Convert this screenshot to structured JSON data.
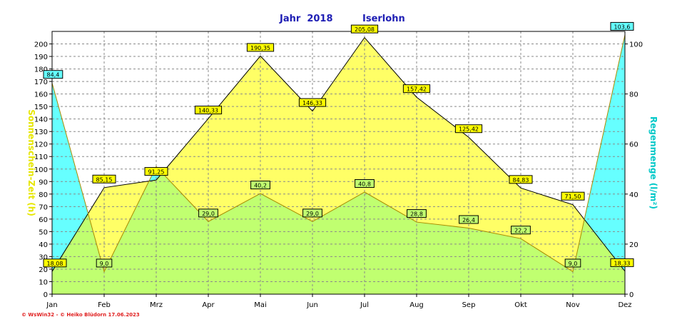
{
  "chart_data": {
    "type": "area",
    "title": "Jahr  2018",
    "subtitle": "Iserlohn",
    "categories": [
      "Jan",
      "Feb",
      "Mrz",
      "Apr",
      "Mai",
      "Jun",
      "Jul",
      "Aug",
      "Sep",
      "Okt",
      "Nov",
      "Dez"
    ],
    "left_axis": {
      "label": "Sonnenschein-Zeit  (h)",
      "ylim": [
        0,
        210
      ],
      "ticks": [
        0,
        10,
        20,
        30,
        40,
        50,
        60,
        70,
        80,
        90,
        100,
        110,
        120,
        130,
        140,
        150,
        160,
        170,
        180,
        190,
        200
      ]
    },
    "right_axis": {
      "label": "Regenmenge  (l/m²)",
      "ylim": [
        0,
        105
      ],
      "ticks": [
        0,
        20,
        40,
        60,
        80,
        100
      ]
    },
    "grid": true,
    "series": [
      {
        "name": "Sonnenschein-Zeit",
        "axis": "left",
        "color": "#ffff66",
        "label_bg": "#ffff00",
        "values": [
          18.08,
          85.15,
          91.25,
          140.33,
          190.35,
          146.33,
          205.08,
          157.42,
          125.42,
          84.83,
          71.5,
          18.33
        ],
        "labels": [
          "18,08",
          "85,15",
          "91,25",
          "140,33",
          "190,35",
          "146,33",
          "205,08",
          "157,42",
          "125,42",
          "84,83",
          "71,50",
          "18,33"
        ]
      },
      {
        "name": "Regenmenge",
        "axis": "right",
        "color": "#66ffff",
        "label_bg": "#66ffff",
        "values": [
          84.4,
          9.0,
          51.0,
          29.0,
          40.2,
          29.0,
          40.8,
          28.8,
          26.4,
          22.2,
          9.0,
          103.6
        ],
        "labels": [
          "84,4",
          "9,0",
          "",
          "29,0",
          "40,2",
          "29,0",
          "40,8",
          "28,8",
          "26,4",
          "22,2",
          "9,0",
          "103,6"
        ]
      }
    ],
    "colors": {
      "axis_text": "#000000",
      "title": "#1e1eb4",
      "left_label": "#e6e600",
      "right_label": "#00c8c8",
      "overlap": "#c0ff70"
    }
  },
  "footer": {
    "credit": "© WsWin32  -  © Heiko Blüdorn  17.06.2023"
  }
}
